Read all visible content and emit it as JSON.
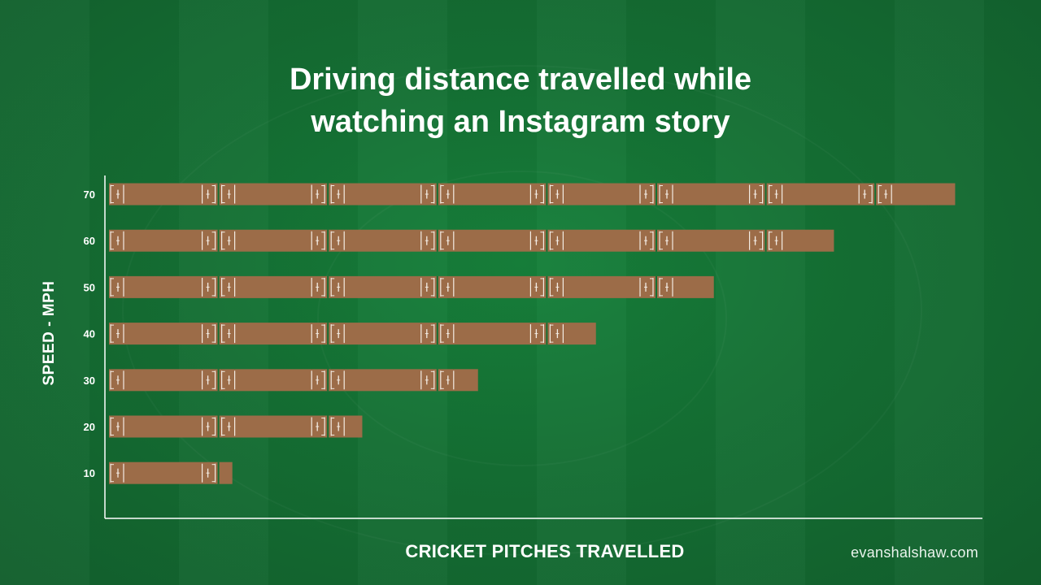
{
  "title_lines": [
    "Driving distance travelled while",
    "watching an Instagram story"
  ],
  "credit": "evanshalshaw.com",
  "colors": {
    "background": "#146f33",
    "pitch": "#9c6c48",
    "crease": "#f3ece4",
    "axis": "#ffffff",
    "text": "#ffffff"
  },
  "chart_data": {
    "type": "bar",
    "orientation": "horizontal",
    "xlabel": "CRICKET PITCHES TRAVELLED",
    "ylabel": "SPEED - MPH",
    "categories": [
      "70",
      "60",
      "50",
      "40",
      "30",
      "20",
      "10"
    ],
    "values": [
      7.75,
      6.64,
      5.54,
      4.46,
      3.38,
      2.32,
      1.13
    ],
    "xlim": [
      0,
      8
    ],
    "x_tick_labels": "none",
    "grid": false,
    "legend": "none"
  }
}
